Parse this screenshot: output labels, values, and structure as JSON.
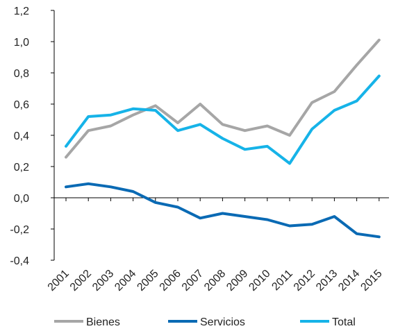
{
  "chart_data": {
    "type": "line",
    "categories": [
      "2001",
      "2002",
      "2003",
      "2004",
      "2005",
      "2006",
      "2007",
      "2008",
      "2009",
      "2010",
      "2011",
      "2012",
      "2013",
      "2014",
      "2015"
    ],
    "series": [
      {
        "name": "Bienes",
        "color": "#a6a6a6",
        "values": [
          0.26,
          0.43,
          0.46,
          0.53,
          0.59,
          0.48,
          0.6,
          0.47,
          0.43,
          0.46,
          0.4,
          0.61,
          0.68,
          0.85,
          1.01
        ]
      },
      {
        "name": "Servicios",
        "color": "#0a6ab4",
        "values": [
          0.07,
          0.09,
          0.07,
          0.04,
          -0.03,
          -0.06,
          -0.13,
          -0.1,
          -0.12,
          -0.14,
          -0.18,
          -0.17,
          -0.12,
          -0.23,
          -0.25
        ]
      },
      {
        "name": "Total",
        "color": "#16b3e8",
        "values": [
          0.33,
          0.52,
          0.53,
          0.57,
          0.56,
          0.43,
          0.47,
          0.38,
          0.31,
          0.33,
          0.22,
          0.44,
          0.56,
          0.62,
          0.78
        ]
      }
    ],
    "ylim": [
      -0.4,
      1.2
    ],
    "yticks": [
      "-0,4",
      "-0,2",
      "0,0",
      "0,2",
      "0,4",
      "0,6",
      "0,8",
      "1,0",
      "1,2"
    ],
    "ytick_values": [
      -0.4,
      -0.2,
      0.0,
      0.2,
      0.4,
      0.6,
      0.8,
      1.0,
      1.2
    ],
    "grid": false,
    "legend_position": "bottom",
    "title": "",
    "xlabel": "",
    "ylabel": ""
  }
}
